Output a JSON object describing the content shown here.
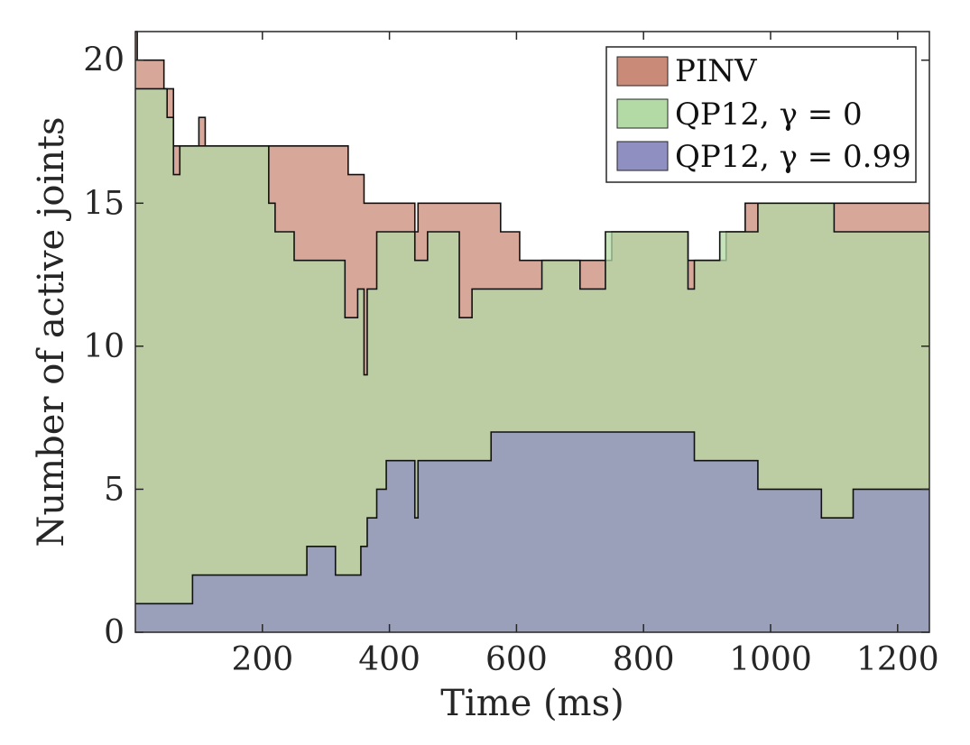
{
  "chart_data": {
    "type": "area",
    "xlabel": "Time (ms)",
    "ylabel": "Number of active joints",
    "xlim": [
      0,
      1250
    ],
    "ylim": [
      0,
      21
    ],
    "xticks": [
      200,
      400,
      600,
      800,
      1000,
      1200
    ],
    "yticks": [
      0,
      5,
      10,
      15,
      20
    ],
    "grid": false,
    "legend_position": "top-right",
    "series": [
      {
        "name": "PINV",
        "color": "#c98b78",
        "points": [
          [
            0,
            21
          ],
          [
            3,
            21
          ],
          [
            3,
            20
          ],
          [
            45,
            20
          ],
          [
            45,
            19
          ],
          [
            60,
            19
          ],
          [
            60,
            17
          ],
          [
            100,
            17
          ],
          [
            100,
            18
          ],
          [
            110,
            18
          ],
          [
            110,
            17
          ],
          [
            180,
            17
          ],
          [
            180,
            17
          ],
          [
            335,
            17
          ],
          [
            335,
            16
          ],
          [
            360,
            16
          ],
          [
            360,
            15
          ],
          [
            440,
            15
          ],
          [
            440,
            14
          ],
          [
            445,
            14
          ],
          [
            445,
            15
          ],
          [
            575,
            15
          ],
          [
            575,
            14
          ],
          [
            605,
            14
          ],
          [
            605,
            13
          ],
          [
            750,
            13
          ],
          [
            750,
            14
          ],
          [
            870,
            14
          ],
          [
            870,
            13
          ],
          [
            930,
            13
          ],
          [
            930,
            14
          ],
          [
            960,
            14
          ],
          [
            960,
            15
          ],
          [
            1250,
            15
          ]
        ]
      },
      {
        "name": "QP12, γ = 0",
        "color": "#b3d9a5",
        "points": [
          [
            0,
            19
          ],
          [
            50,
            19
          ],
          [
            50,
            18
          ],
          [
            60,
            18
          ],
          [
            60,
            16
          ],
          [
            70,
            16
          ],
          [
            70,
            17
          ],
          [
            210,
            17
          ],
          [
            210,
            15
          ],
          [
            220,
            15
          ],
          [
            220,
            14
          ],
          [
            250,
            14
          ],
          [
            250,
            13
          ],
          [
            330,
            13
          ],
          [
            330,
            11
          ],
          [
            350,
            11
          ],
          [
            350,
            12
          ],
          [
            360,
            12
          ],
          [
            360,
            9
          ],
          [
            365,
            9
          ],
          [
            365,
            12
          ],
          [
            380,
            12
          ],
          [
            380,
            14
          ],
          [
            440,
            14
          ],
          [
            440,
            13
          ],
          [
            460,
            13
          ],
          [
            460,
            14
          ],
          [
            510,
            14
          ],
          [
            510,
            11
          ],
          [
            530,
            11
          ],
          [
            530,
            12
          ],
          [
            640,
            12
          ],
          [
            640,
            13
          ],
          [
            700,
            13
          ],
          [
            700,
            12
          ],
          [
            740,
            12
          ],
          [
            740,
            14
          ],
          [
            870,
            14
          ],
          [
            870,
            12
          ],
          [
            880,
            12
          ],
          [
            880,
            13
          ],
          [
            920,
            13
          ],
          [
            920,
            14
          ],
          [
            980,
            14
          ],
          [
            980,
            15
          ],
          [
            1100,
            15
          ],
          [
            1100,
            14
          ],
          [
            1250,
            14
          ]
        ]
      },
      {
        "name": "QP12, γ = 0.99",
        "color": "#8f8fc1",
        "points": [
          [
            0,
            1
          ],
          [
            90,
            1
          ],
          [
            90,
            2
          ],
          [
            270,
            2
          ],
          [
            270,
            3
          ],
          [
            315,
            3
          ],
          [
            315,
            2
          ],
          [
            345,
            2
          ],
          [
            345,
            2
          ],
          [
            355,
            2
          ],
          [
            355,
            3
          ],
          [
            365,
            3
          ],
          [
            365,
            4
          ],
          [
            380,
            4
          ],
          [
            380,
            5
          ],
          [
            395,
            5
          ],
          [
            395,
            6
          ],
          [
            440,
            6
          ],
          [
            440,
            4
          ],
          [
            445,
            4
          ],
          [
            445,
            6
          ],
          [
            560,
            6
          ],
          [
            560,
            7
          ],
          [
            880,
            7
          ],
          [
            880,
            6
          ],
          [
            980,
            6
          ],
          [
            980,
            5
          ],
          [
            1080,
            5
          ],
          [
            1080,
            4
          ],
          [
            1130,
            4
          ],
          [
            1130,
            5
          ],
          [
            1250,
            5
          ]
        ]
      }
    ]
  }
}
